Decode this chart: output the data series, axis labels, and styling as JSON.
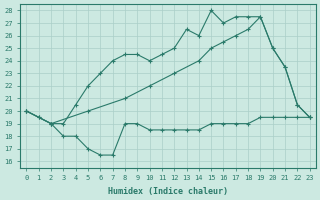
{
  "xlabel": "Humidex (Indice chaleur)",
  "bg_color": "#cce9e1",
  "grid_color": "#aacfc8",
  "line_color": "#2a7a6a",
  "xlim": [
    -0.5,
    23.5
  ],
  "ylim": [
    15.5,
    28.5
  ],
  "yticks": [
    16,
    17,
    18,
    19,
    20,
    21,
    22,
    23,
    24,
    25,
    26,
    27,
    28
  ],
  "xticks": [
    0,
    1,
    2,
    3,
    4,
    5,
    6,
    7,
    8,
    9,
    10,
    11,
    12,
    13,
    14,
    15,
    16,
    17,
    18,
    19,
    20,
    21,
    22,
    23
  ],
  "line_min_x": [
    0,
    1,
    2,
    3,
    4,
    5,
    6,
    7,
    8,
    9,
    10,
    11,
    12,
    13,
    14,
    15,
    16,
    17,
    18,
    19,
    20,
    21,
    22,
    23
  ],
  "line_min_y": [
    20,
    19.5,
    19,
    18,
    18,
    17,
    16.5,
    16.5,
    19,
    19,
    18.5,
    18.5,
    18.5,
    18.5,
    18.5,
    19,
    19,
    19,
    19,
    19.5,
    19.5,
    19.5,
    19.5,
    19.5
  ],
  "line_max_x": [
    0,
    1,
    2,
    3,
    4,
    5,
    6,
    7,
    8,
    9,
    10,
    11,
    12,
    13,
    14,
    15,
    16,
    17,
    18,
    19,
    20,
    21,
    22,
    23
  ],
  "line_max_y": [
    20,
    19.5,
    19,
    19,
    20.5,
    22,
    23,
    24,
    24.5,
    24.5,
    24,
    24.5,
    25,
    26.5,
    26,
    28,
    27,
    27.5,
    27.5,
    27.5,
    25,
    23.5,
    20.5,
    19.5
  ],
  "line_avg_x": [
    0,
    2,
    5,
    8,
    10,
    12,
    14,
    15,
    16,
    17,
    18,
    19,
    20,
    21,
    22,
    23
  ],
  "line_avg_y": [
    20,
    19,
    20,
    21,
    22,
    23,
    24,
    25,
    25.5,
    26,
    26.5,
    27.5,
    25,
    23.5,
    20.5,
    19.5
  ]
}
